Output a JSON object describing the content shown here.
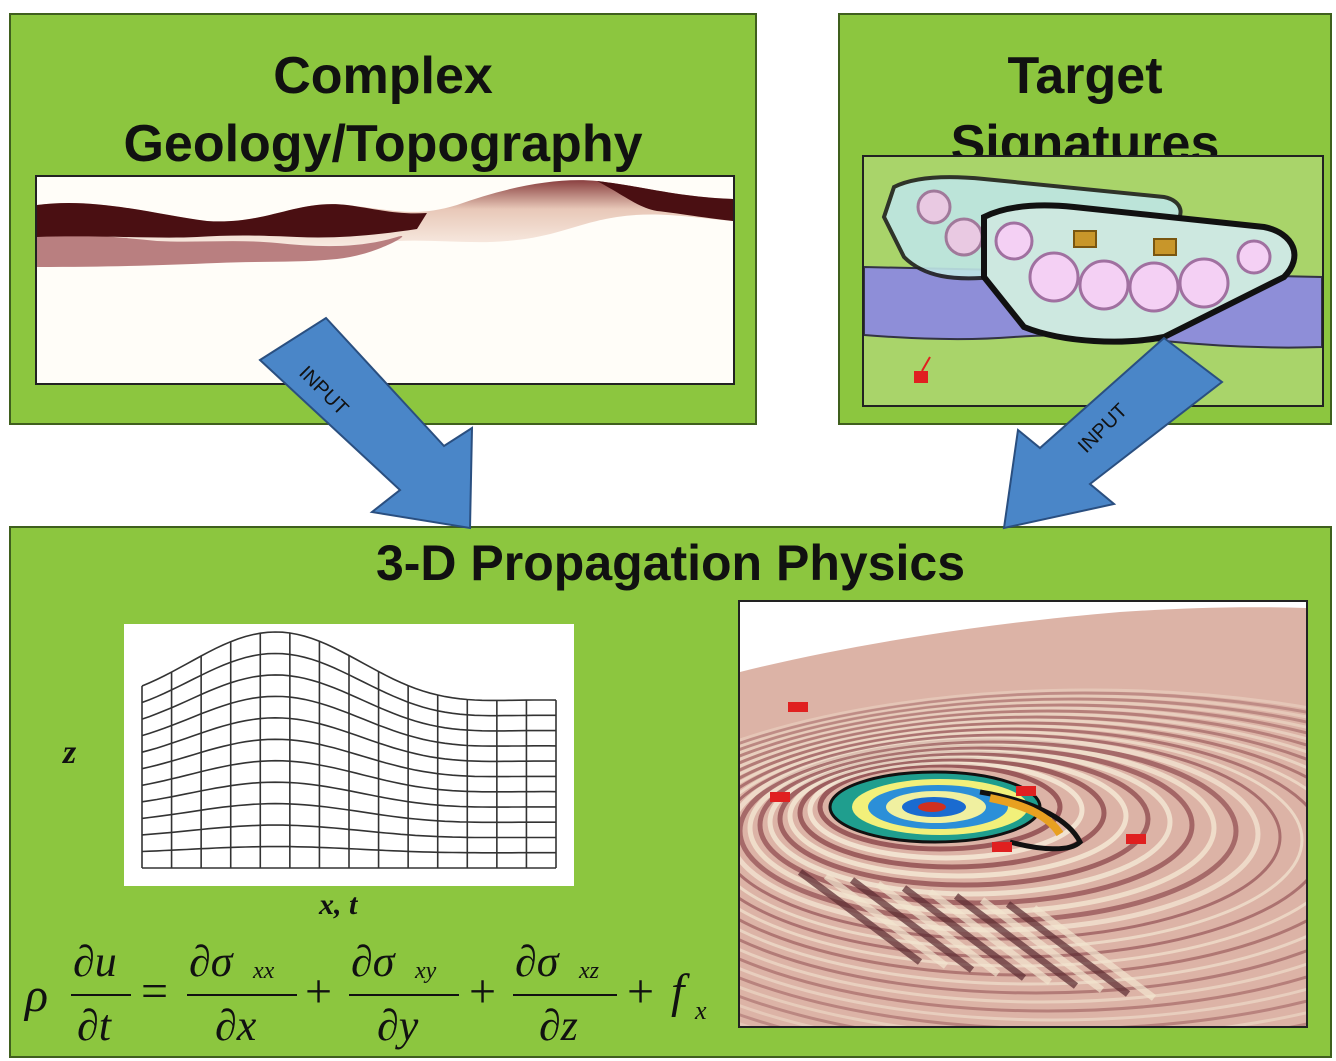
{
  "panels": {
    "geology": {
      "title_line1": "Complex",
      "title_line2": "Geology/Topography"
    },
    "target": {
      "title_line1": "Target",
      "title_line2": "Signatures"
    },
    "physics": {
      "title": "3-D Propagation Physics"
    }
  },
  "arrows": {
    "left_label": "INPUT",
    "right_label": "INPUT"
  },
  "grid_labels": {
    "z": "z",
    "xt": "x, t"
  },
  "equation": {
    "rho": "ρ",
    "du": "∂u",
    "dt": "∂t",
    "eq": "=",
    "plus": "+",
    "dsigma_xx": "∂σ",
    "sub_xx": "xx",
    "dx": "∂x",
    "dsigma_xy": "∂σ",
    "sub_xy": "xy",
    "dy": "∂y",
    "dsigma_xz": "∂σ",
    "sub_xz": "xz",
    "dz": "∂z",
    "f": "f",
    "sub_x": "x"
  },
  "colors": {
    "panel_green": "#8cc63f",
    "arrow_blue": "#4a86c8",
    "dark_layer": "#4a0f12",
    "mid_layer": "#b97f80"
  }
}
